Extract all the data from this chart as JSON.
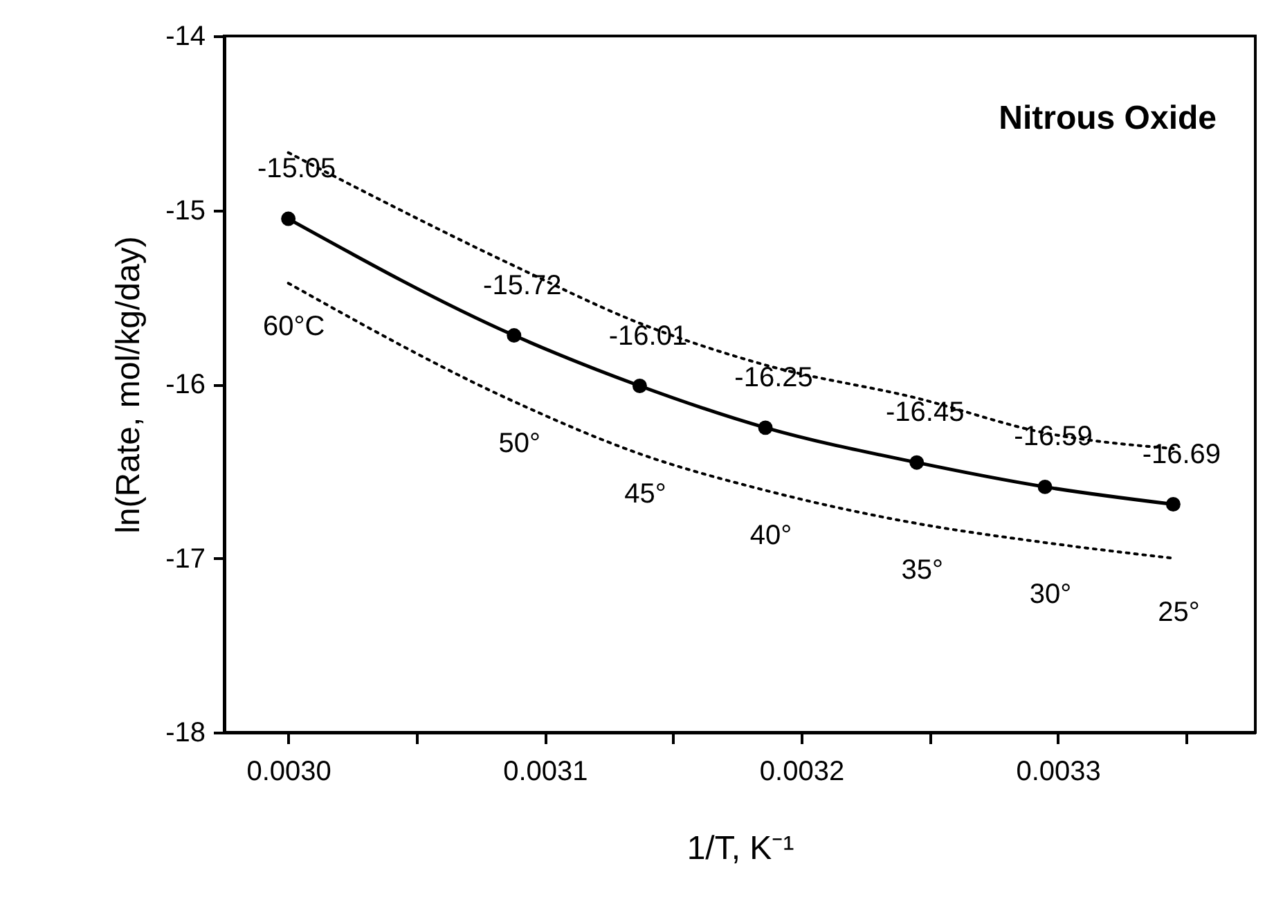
{
  "chart_data": {
    "type": "line",
    "title": "Nitrous Oxide",
    "xlabel": "1/T, K⁻¹",
    "ylabel": "ln(Rate, mol/kg/day)",
    "x": [
      0.003,
      0.003088,
      0.003137,
      0.003186,
      0.003245,
      0.003295,
      0.003345
    ],
    "series": [
      {
        "color": "#000000",
        "values": [
          -15.05,
          -15.72,
          -16.01,
          -16.25,
          -16.45,
          -16.59,
          -16.69
        ],
        "value_labels": [
          "-15.05",
          "-15.72",
          "-16.01",
          "-16.25",
          "-16.45",
          "-16.59",
          "-16.69"
        ]
      },
      {
        "color": "#000000",
        "values": [
          -14.67,
          -15.32,
          -15.65,
          -15.89,
          -16.08,
          -16.28,
          -16.37
        ],
        "line_style": "dotted",
        "marker": "none"
      },
      {
        "color": "#000000",
        "values": [
          -15.42,
          -16.1,
          -16.4,
          -16.61,
          -16.8,
          -16.91,
          -17.0
        ],
        "line_style": "dotted",
        "marker": "none"
      }
    ],
    "marker": "circle",
    "line_style": "solid",
    "xlim": [
      0.002975,
      0.003377
    ],
    "ylim": [
      -18,
      -14
    ],
    "xticks": [
      {
        "value": 0.003,
        "label": "0.0030"
      },
      {
        "value": 0.00305,
        "label": null
      },
      {
        "value": 0.0031,
        "label": "0.0031"
      },
      {
        "value": 0.00315,
        "label": null
      },
      {
        "value": 0.0032,
        "label": "0.0032"
      },
      {
        "value": 0.00325,
        "label": null
      },
      {
        "value": 0.0033,
        "label": "0.0033"
      },
      {
        "value": 0.00335,
        "label": null
      }
    ],
    "yticks": [
      -18,
      -17,
      -16,
      -15,
      -14
    ],
    "annotations": [
      "60°C",
      "50°",
      "45°",
      "40°",
      "35°",
      "30°",
      "25°"
    ]
  }
}
